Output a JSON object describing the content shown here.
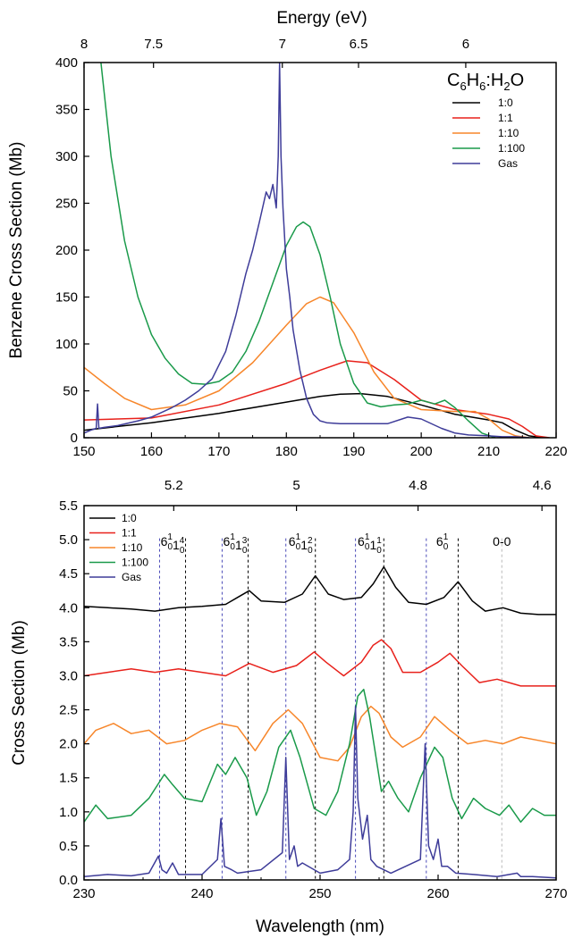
{
  "chart_data": [
    {
      "type": "line",
      "ylabel": "Benzene Cross Section (Mb)",
      "top_axis": {
        "label": "Energy (eV)",
        "ticks": [
          "8",
          "7.5",
          "7",
          "6.5",
          "6"
        ]
      },
      "xlim": [
        150,
        220
      ],
      "ylim": [
        0,
        400
      ],
      "xticks": [
        "150",
        "160",
        "170",
        "180",
        "190",
        "200",
        "210",
        "220"
      ],
      "yticks": [
        "0",
        "50",
        "100",
        "150",
        "200",
        "250",
        "300",
        "350",
        "400"
      ],
      "legend": {
        "title_parts": [
          "C",
          "6",
          "H",
          "6",
          ":H",
          "2",
          "O"
        ],
        "placement": "top-right"
      },
      "series": [
        {
          "name": "1:0",
          "color": "#000000",
          "x": [
            150,
            160,
            170,
            180,
            185,
            188,
            191,
            195,
            200,
            205,
            210,
            212,
            214,
            216,
            218
          ],
          "y": [
            8,
            16,
            26,
            38,
            44,
            46.5,
            47,
            44,
            35,
            25,
            19,
            16,
            8,
            2,
            0
          ]
        },
        {
          "name": "1:1",
          "color": "#e8211b",
          "x": [
            150,
            160,
            170,
            180,
            185,
            189,
            192,
            196,
            200,
            205,
            210,
            213,
            215,
            217,
            219
          ],
          "y": [
            19,
            21,
            35,
            58,
            72,
            82,
            80,
            62,
            40,
            30,
            25,
            20,
            12,
            2,
            0
          ]
        },
        {
          "name": "1:10",
          "color": "#f7862a",
          "x": [
            150,
            153,
            156,
            160,
            165,
            170,
            175,
            180,
            183,
            185,
            187,
            190,
            193,
            196,
            200,
            205,
            208,
            210,
            212,
            214,
            216
          ],
          "y": [
            75,
            58,
            42,
            30,
            35,
            50,
            80,
            120,
            143,
            150,
            144,
            112,
            70,
            42,
            30,
            28,
            28,
            20,
            8,
            2,
            0
          ]
        },
        {
          "name": "1:100",
          "color": "#1a9a4a",
          "x": [
            152.5,
            154,
            156,
            158,
            160,
            162,
            164,
            166,
            168,
            170,
            172,
            174,
            176,
            178,
            180,
            181.5,
            182.5,
            183.5,
            185,
            186.5,
            188,
            190,
            192,
            194,
            196,
            198,
            200,
            202,
            203.5,
            205,
            207,
            209,
            211
          ],
          "y": [
            400,
            300,
            210,
            150,
            110,
            85,
            68,
            58,
            57,
            60,
            70,
            92,
            125,
            165,
            205,
            225,
            230,
            225,
            195,
            150,
            100,
            58,
            37,
            33,
            35,
            36,
            40,
            36,
            40,
            32,
            18,
            5,
            0
          ]
        },
        {
          "name": "Gas",
          "color": "#3e3c99",
          "x": [
            150,
            151,
            151.8,
            152,
            152.2,
            153,
            155,
            158,
            160,
            163,
            165,
            167,
            169,
            171,
            172.5,
            174,
            175,
            176,
            177,
            177.5,
            178,
            178.5,
            178.8,
            179,
            179.2,
            179.5,
            180,
            180.5,
            181,
            182,
            183,
            184,
            185,
            186,
            188,
            190,
            195,
            198,
            200,
            203,
            205,
            207,
            210,
            212,
            214,
            216
          ],
          "y": [
            5,
            8,
            10,
            36,
            10,
            11,
            13,
            18,
            22,
            32,
            40,
            50,
            63,
            92,
            130,
            175,
            200,
            230,
            262,
            255,
            270,
            245,
            300,
            400,
            300,
            245,
            180,
            150,
            115,
            72,
            42,
            25,
            18,
            16,
            15,
            15,
            15,
            22,
            20,
            10,
            5,
            3,
            2,
            1,
            1,
            0
          ]
        }
      ]
    },
    {
      "type": "line",
      "xlabel": "Wavelength (nm)",
      "ylabel": "Cross Section (Mb)",
      "top_axis": {
        "ticks": [
          "5.2",
          "5",
          "4.8",
          "4.6"
        ]
      },
      "xlim": [
        230,
        270
      ],
      "ylim": [
        0,
        5.5
      ],
      "xticks": [
        "230",
        "240",
        "250",
        "260",
        "270"
      ],
      "yticks": [
        "0.0",
        "0.5",
        "1.0",
        "1.5",
        "2.0",
        "2.5",
        "3.0",
        "3.5",
        "4.0",
        "4.5",
        "5.0",
        "5.5"
      ],
      "legend": {
        "placement": "top-left"
      },
      "vibronic_lines": [
        {
          "x": 236.4,
          "color": "#4b4bb8"
        },
        {
          "x": 238.6,
          "color": "#000000"
        },
        {
          "x": 241.7,
          "color": "#4b4bb8"
        },
        {
          "x": 243.9,
          "color": "#000000"
        },
        {
          "x": 247.1,
          "color": "#4b4bb8"
        },
        {
          "x": 249.6,
          "color": "#000000"
        },
        {
          "x": 253.0,
          "color": "#4b4bb8"
        },
        {
          "x": 255.4,
          "color": "#000000"
        },
        {
          "x": 259.0,
          "color": "#4b4bb8"
        },
        {
          "x": 261.7,
          "color": "#000000"
        },
        {
          "x": 265.4,
          "color": "#b8b8b8"
        }
      ],
      "annotations": [
        {
          "x": 237.5,
          "parts": [
            [
              "6",
              "1",
              "0"
            ],
            [
              "1",
              "4",
              "0"
            ]
          ]
        },
        {
          "x": 242.8,
          "parts": [
            [
              "6",
              "1",
              "0"
            ],
            [
              "1",
              "3",
              "0"
            ]
          ]
        },
        {
          "x": 248.35,
          "parts": [
            [
              "6",
              "1",
              "0"
            ],
            [
              "1",
              "2",
              "0"
            ]
          ]
        },
        {
          "x": 254.2,
          "parts": [
            [
              "6",
              "1",
              "0"
            ],
            [
              "1",
              "1",
              "0"
            ]
          ]
        },
        {
          "x": 260.35,
          "parts": [
            [
              "6",
              "1",
              "0"
            ]
          ]
        },
        {
          "x": 265.4,
          "text": "0-0",
          "color": "#a0a0a0"
        }
      ],
      "series": [
        {
          "name": "1:0",
          "color": "#000000",
          "x": [
            230,
            232,
            234,
            236,
            238,
            240,
            242,
            243,
            244,
            245,
            247,
            248.5,
            249.6,
            250.7,
            252,
            253.5,
            254.5,
            255.4,
            256.4,
            257.5,
            259,
            260.5,
            261.7,
            262.9,
            264,
            265.5,
            267,
            268.5,
            270
          ],
          "y": [
            4.02,
            4.0,
            3.98,
            3.95,
            4.0,
            4.02,
            4.05,
            4.15,
            4.25,
            4.1,
            4.08,
            4.2,
            4.47,
            4.2,
            4.12,
            4.15,
            4.35,
            4.6,
            4.3,
            4.08,
            4.05,
            4.15,
            4.38,
            4.1,
            3.95,
            4.0,
            3.92,
            3.9,
            3.9
          ]
        },
        {
          "name": "1:1",
          "color": "#e8211b",
          "x": [
            230,
            232,
            234,
            236,
            238,
            240,
            242,
            244,
            246,
            248,
            249.5,
            250.5,
            252,
            253.5,
            254.5,
            255.2,
            256,
            257,
            258.5,
            260,
            261,
            262,
            263.5,
            265,
            267,
            268.5,
            270
          ],
          "y": [
            3.0,
            3.05,
            3.1,
            3.05,
            3.1,
            3.05,
            3.0,
            3.18,
            3.05,
            3.15,
            3.35,
            3.2,
            3.0,
            3.2,
            3.45,
            3.53,
            3.4,
            3.05,
            3.05,
            3.2,
            3.33,
            3.15,
            2.9,
            2.95,
            2.85,
            2.85,
            2.85
          ]
        },
        {
          "name": "1:10",
          "color": "#f7862a",
          "x": [
            230,
            231,
            232.5,
            234,
            235.5,
            237,
            238.5,
            240,
            241.5,
            243,
            244.5,
            246,
            247.3,
            248.5,
            250,
            251.5,
            252.5,
            253.5,
            254.3,
            255,
            256,
            257,
            258.5,
            259.7,
            261,
            262.5,
            264,
            265.5,
            267,
            268.5,
            270
          ],
          "y": [
            2.0,
            2.2,
            2.3,
            2.15,
            2.2,
            2.0,
            2.05,
            2.2,
            2.3,
            2.25,
            1.9,
            2.3,
            2.5,
            2.3,
            1.8,
            1.75,
            1.95,
            2.4,
            2.55,
            2.45,
            2.1,
            1.95,
            2.1,
            2.4,
            2.2,
            2.0,
            2.05,
            2.0,
            2.1,
            2.05,
            2.0
          ]
        },
        {
          "name": "1:100",
          "color": "#1a9a4a",
          "x": [
            230,
            231,
            232,
            234,
            235.5,
            236.8,
            237.5,
            238.5,
            240,
            241.3,
            242,
            242.8,
            243.8,
            244.6,
            245.5,
            246.5,
            247.5,
            248.3,
            249.5,
            250.5,
            251.5,
            252.5,
            253.2,
            253.7,
            254.2,
            255.2,
            255.8,
            256.6,
            257.5,
            258.5,
            259.7,
            260.4,
            261.2,
            262,
            263,
            264,
            265.2,
            266,
            267,
            268,
            269,
            270
          ],
          "y": [
            0.85,
            1.1,
            0.9,
            0.95,
            1.2,
            1.55,
            1.4,
            1.2,
            1.15,
            1.7,
            1.55,
            1.8,
            1.5,
            0.95,
            1.3,
            1.95,
            2.2,
            1.8,
            1.05,
            0.95,
            1.3,
            2.0,
            2.7,
            2.8,
            2.4,
            1.3,
            1.45,
            1.2,
            1.0,
            1.5,
            1.95,
            1.8,
            1.2,
            0.9,
            1.2,
            1.05,
            0.95,
            1.1,
            0.85,
            1.05,
            0.95,
            0.95
          ]
        },
        {
          "name": "Gas",
          "color": "#3e3c99",
          "x": [
            230,
            232,
            234,
            235.5,
            236.3,
            236.6,
            237,
            237.5,
            238,
            240,
            241.3,
            241.6,
            241.9,
            242.5,
            243,
            245,
            246.8,
            247.1,
            247.4,
            247.8,
            248.1,
            248.5,
            250,
            251.5,
            252.5,
            252.8,
            253.0,
            253.2,
            253.6,
            254.0,
            254.3,
            254.8,
            256,
            258.5,
            258.9,
            259.2,
            259.6,
            260.0,
            260.3,
            260.8,
            261.5,
            263,
            265,
            266.7,
            267,
            268,
            270
          ],
          "y": [
            0.05,
            0.08,
            0.06,
            0.1,
            0.35,
            0.15,
            0.1,
            0.25,
            0.08,
            0.08,
            0.3,
            0.9,
            0.2,
            0.15,
            0.1,
            0.15,
            0.4,
            1.8,
            0.3,
            0.5,
            0.2,
            0.25,
            0.1,
            0.15,
            0.3,
            1.0,
            2.55,
            1.2,
            0.6,
            0.95,
            0.3,
            0.2,
            0.1,
            0.3,
            2.0,
            0.5,
            0.3,
            0.6,
            0.2,
            0.2,
            0.1,
            0.08,
            0.05,
            0.1,
            0.05,
            0.05,
            0.03
          ]
        }
      ]
    }
  ]
}
